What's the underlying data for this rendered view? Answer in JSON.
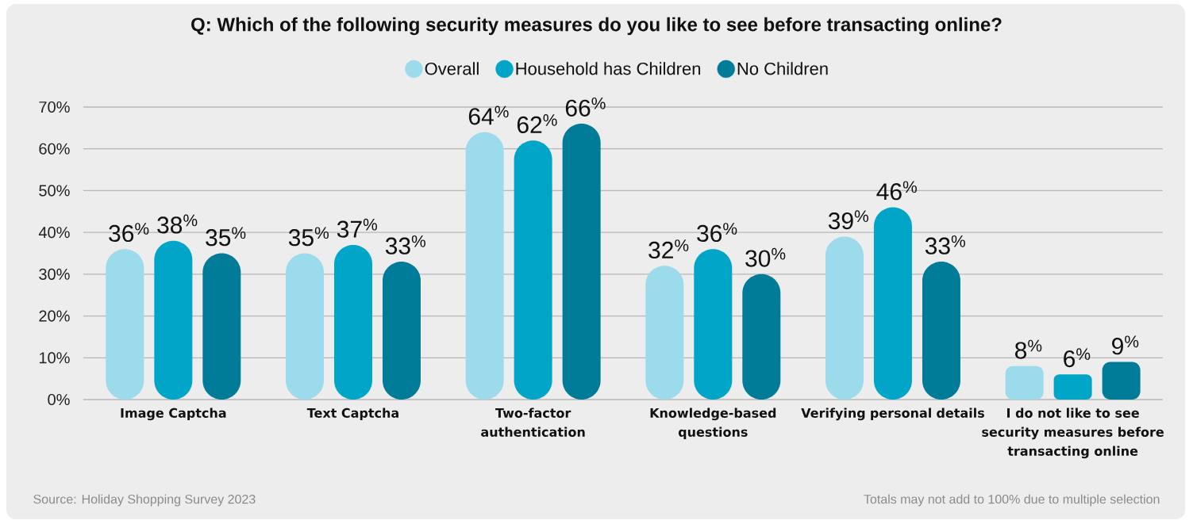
{
  "chart_data": {
    "type": "bar",
    "title": "Q: Which of the following security measures do you like to see before transacting online?",
    "categories": [
      "Image Captcha",
      "Text Captcha",
      "Two-factor authentication",
      "Knowledge-based questions",
      "Verifying personal details",
      "I do not like to see security measures before transacting online"
    ],
    "series": [
      {
        "name": "Overall",
        "color": "#9bdbeb",
        "values": [
          36,
          35,
          64,
          32,
          39,
          8
        ],
        "value_labels": [
          "36$^{%}$",
          "35$^{%}$",
          "64$^{%}$",
          "32$^{%}$",
          "39$^{%}$",
          "8$^{%}$"
        ]
      },
      {
        "name": "Household has Children",
        "color": "#00a5c8",
        "values": [
          38,
          37,
          62,
          36,
          46,
          6
        ],
        "value_labels": [
          "38$^{%}$",
          "37$^{%}$",
          "62$^{%}$",
          "36$^{%}$",
          "46$^{%}$",
          "6$^{%}$"
        ]
      },
      {
        "name": "No Children",
        "color": "#007c99",
        "values": [
          35,
          33,
          66,
          30,
          33,
          9
        ],
        "value_labels": [
          "35$^{%}$",
          "33$^{%}$",
          "66$^{%}$",
          "30$^{%}$",
          "33$^{%}$",
          "9$^{%}$"
        ]
      }
    ],
    "ylim": [
      0,
      70
    ],
    "yticks": [
      {
        "value": 0,
        "label": "0%"
      },
      {
        "value": 10,
        "label": "10%"
      },
      {
        "value": 20,
        "label": "20%"
      },
      {
        "value": 30,
        "label": "30%"
      },
      {
        "value": 40,
        "label": "40%"
      },
      {
        "value": 50,
        "label": "50%"
      },
      {
        "value": 60,
        "label": "60%"
      },
      {
        "value": 70,
        "label": "70%"
      }
    ],
    "grid": "y",
    "legend": "top",
    "annotations": [
      "Source: Holiday Shopping Survey 2023",
      "Totals may not add to 100% due to multiple selection"
    ]
  }
}
